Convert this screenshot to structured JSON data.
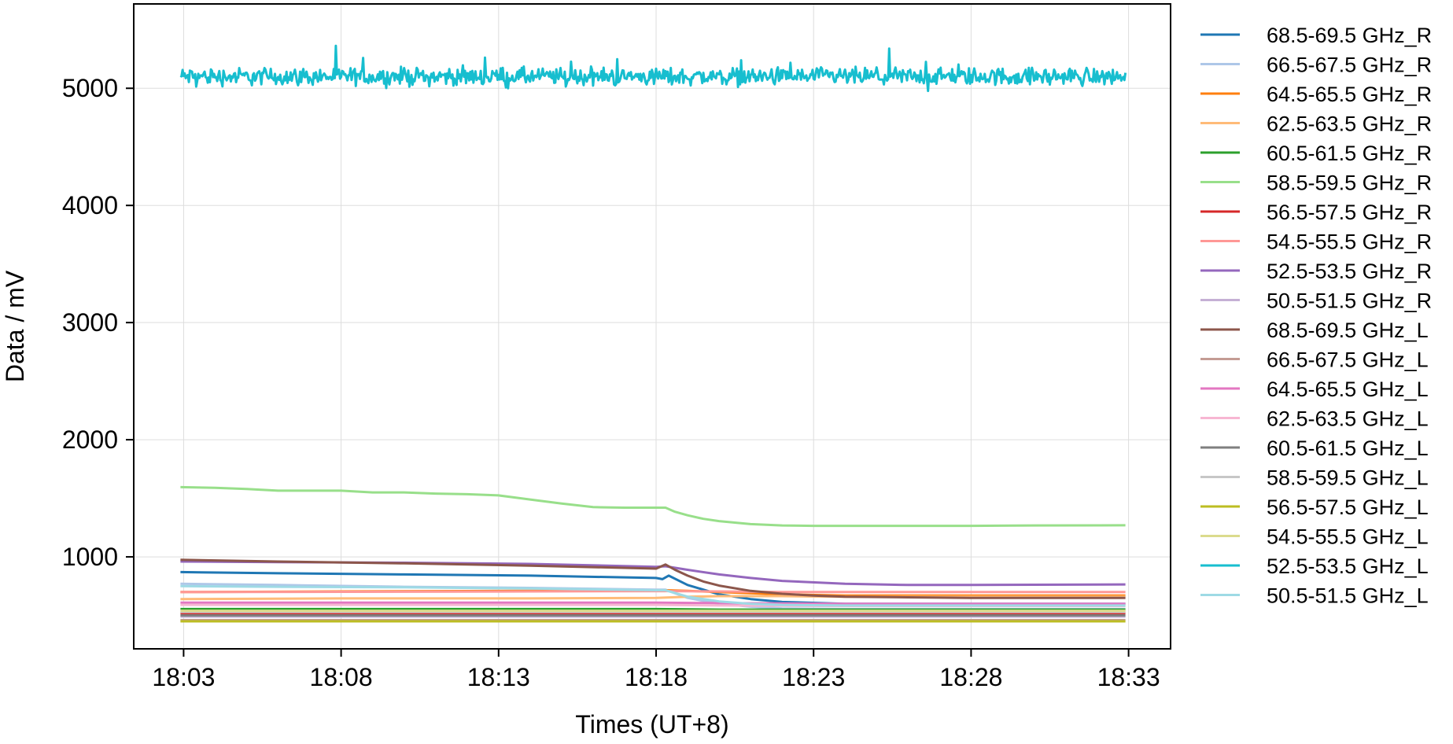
{
  "chart_data": {
    "type": "line",
    "title": "",
    "xlabel": "Times (UT+8)",
    "ylabel": "Data / mV",
    "x_tick_labels": [
      "18:03",
      "18:08",
      "18:13",
      "18:18",
      "18:23",
      "18:28",
      "18:33"
    ],
    "x_tick_minutes": [
      3,
      8,
      13,
      18,
      23,
      28,
      33
    ],
    "y_ticks": [
      1000,
      2000,
      3000,
      4000,
      5000
    ],
    "y_tick_labels": [
      "1000",
      "2000",
      "3000",
      "4000",
      "5000"
    ],
    "xlim": [
      "18:01:25",
      "18:34:20"
    ],
    "ylim": [
      215,
      5720
    ],
    "grid": true,
    "legend_position": "outside right",
    "series": [
      {
        "name": "68.5-69.5 GHz_R",
        "color": "#1f77b4",
        "x_minutes": [
          2.9,
          6,
          10,
          14,
          18,
          18.2,
          18.4,
          19,
          20,
          21,
          22,
          24,
          26,
          28,
          30,
          32.9
        ],
        "values": [
          870,
          860,
          850,
          840,
          820,
          810,
          840,
          760,
          680,
          640,
          615,
          600,
          600,
          600,
          600,
          600
        ]
      },
      {
        "name": "66.5-67.5 GHz_R",
        "color": "#aec7e8",
        "x_minutes": [
          2.9,
          6,
          10,
          14,
          18,
          18.3,
          19,
          20,
          21,
          22,
          24,
          26,
          28,
          30,
          32.9
        ],
        "values": [
          770,
          760,
          745,
          735,
          720,
          720,
          650,
          600,
          575,
          560,
          555,
          555,
          555,
          555,
          555
        ]
      },
      {
        "name": "64.5-65.5 GHz_R",
        "color": "#ff7f0e",
        "x_minutes": [
          2.9,
          8,
          14,
          18,
          18.3,
          19,
          20,
          21,
          22,
          24,
          28,
          32.9
        ],
        "values": [
          700,
          705,
          710,
          715,
          715,
          710,
          700,
          690,
          680,
          670,
          670,
          670
        ]
      },
      {
        "name": "62.5-63.5 GHz_R",
        "color": "#ffbb78",
        "x_minutes": [
          2.9,
          8,
          14,
          18,
          19,
          20,
          22,
          24,
          28,
          32.9
        ],
        "values": [
          640,
          645,
          645,
          650,
          660,
          665,
          665,
          660,
          660,
          660
        ]
      },
      {
        "name": "60.5-61.5 GHz_R",
        "color": "#2ca02c",
        "x_minutes": [
          2.9,
          8,
          14,
          18,
          20,
          24,
          28,
          32.9
        ],
        "values": [
          555,
          555,
          555,
          555,
          550,
          550,
          550,
          550
        ]
      },
      {
        "name": "58.5-59.5 GHz_R",
        "color": "#98df8a",
        "x_minutes": [
          2.9,
          4,
          5,
          6,
          8,
          9,
          10,
          11,
          12,
          13,
          14,
          15,
          16,
          17,
          18,
          18.3,
          18.6,
          19,
          19.5,
          20,
          21,
          22,
          23,
          24,
          26,
          28,
          30,
          32.9
        ],
        "values": [
          1595,
          1590,
          1580,
          1565,
          1565,
          1550,
          1550,
          1540,
          1535,
          1525,
          1490,
          1455,
          1425,
          1420,
          1420,
          1420,
          1385,
          1355,
          1325,
          1305,
          1280,
          1268,
          1265,
          1265,
          1265,
          1265,
          1268,
          1270
        ]
      },
      {
        "name": "56.5-57.5 GHz_R",
        "color": "#d62728",
        "x_minutes": [
          2.9,
          8,
          14,
          18,
          20,
          24,
          28,
          32.9
        ],
        "values": [
          520,
          520,
          520,
          520,
          520,
          520,
          520,
          520
        ]
      },
      {
        "name": "54.5-55.5 GHz_R",
        "color": "#ff9896",
        "x_minutes": [
          2.9,
          8,
          14,
          18,
          18.5,
          20,
          22,
          24,
          28,
          32.9
        ],
        "values": [
          700,
          702,
          705,
          708,
          708,
          705,
          700,
          700,
          700,
          700
        ]
      },
      {
        "name": "52.5-53.5 GHz_R",
        "color": "#9467bd",
        "x_minutes": [
          2.9,
          6,
          10,
          14,
          18,
          18.3,
          19,
          20,
          21,
          22,
          24,
          26,
          28,
          30,
          32.9
        ],
        "values": [
          960,
          955,
          950,
          940,
          915,
          920,
          890,
          850,
          820,
          795,
          770,
          760,
          760,
          762,
          765
        ]
      },
      {
        "name": "50.5-51.5 GHz_R",
        "color": "#c5b0d5",
        "x_minutes": [
          2.9,
          8,
          14,
          18,
          20,
          24,
          28,
          32.9
        ],
        "values": [
          490,
          490,
          490,
          490,
          490,
          490,
          490,
          490
        ]
      },
      {
        "name": "68.5-69.5 GHz_L",
        "color": "#8c564b",
        "x_minutes": [
          2.9,
          6,
          10,
          14,
          18,
          18.3,
          18.6,
          19,
          19.5,
          20,
          21,
          22,
          23,
          24,
          26,
          28,
          30,
          32.9
        ],
        "values": [
          975,
          960,
          945,
          925,
          900,
          935,
          890,
          840,
          790,
          755,
          710,
          685,
          670,
          660,
          655,
          650,
          650,
          650
        ]
      },
      {
        "name": "66.5-67.5 GHz_L",
        "color": "#c49c94",
        "x_minutes": [
          2.9,
          8,
          14,
          18,
          20,
          24,
          28,
          32.9
        ],
        "values": [
          460,
          460,
          460,
          460,
          460,
          460,
          460,
          460
        ]
      },
      {
        "name": "64.5-65.5 GHz_L",
        "color": "#e377c2",
        "x_minutes": [
          2.9,
          8,
          14,
          18,
          20,
          24,
          28,
          32.9
        ],
        "values": [
          610,
          610,
          610,
          610,
          605,
          600,
          600,
          600
        ]
      },
      {
        "name": "62.5-63.5 GHz_L",
        "color": "#f7b6d2",
        "x_minutes": [
          2.9,
          8,
          14,
          18,
          20,
          24,
          28,
          32.9
        ],
        "values": [
          590,
          590,
          590,
          590,
          585,
          580,
          580,
          580
        ]
      },
      {
        "name": "60.5-61.5 GHz_L",
        "color": "#7f7f7f",
        "x_minutes": [
          2.9,
          8,
          14,
          18,
          20,
          24,
          28,
          32.9
        ],
        "values": [
          500,
          500,
          500,
          500,
          500,
          500,
          500,
          500
        ]
      },
      {
        "name": "58.5-59.5 GHz_L",
        "color": "#c7c7c7",
        "x_minutes": [
          2.9,
          8,
          14,
          18,
          20,
          24,
          28,
          32.9
        ],
        "values": [
          530,
          530,
          530,
          530,
          530,
          530,
          530,
          530
        ]
      },
      {
        "name": "56.5-57.5 GHz_L",
        "color": "#bcbd22",
        "x_minutes": [
          2.9,
          8,
          14,
          18,
          20,
          24,
          28,
          32.9
        ],
        "values": [
          450,
          450,
          450,
          450,
          450,
          450,
          450,
          450
        ]
      },
      {
        "name": "54.5-55.5 GHz_L",
        "color": "#dbdb8d",
        "x_minutes": [
          2.9,
          8,
          14,
          18,
          20,
          24,
          28,
          32.9
        ],
        "values": [
          540,
          540,
          540,
          540,
          540,
          540,
          540,
          540
        ]
      },
      {
        "name": "52.5-53.5 GHz_L",
        "color": "#17becf",
        "x_minutes": [
          2.9,
          32.9
        ],
        "values": [
          5100,
          5100
        ],
        "noise_amplitude": 110,
        "note": "noisy around ~5100 mV"
      },
      {
        "name": "50.5-51.5 GHz_L",
        "color": "#9edae5",
        "x_minutes": [
          2.9,
          6,
          10,
          14,
          18,
          18.3,
          19,
          20,
          21,
          22,
          24,
          28,
          32.9
        ],
        "values": [
          750,
          745,
          740,
          730,
          715,
          715,
          660,
          620,
          600,
          590,
          585,
          585,
          585
        ]
      }
    ]
  }
}
